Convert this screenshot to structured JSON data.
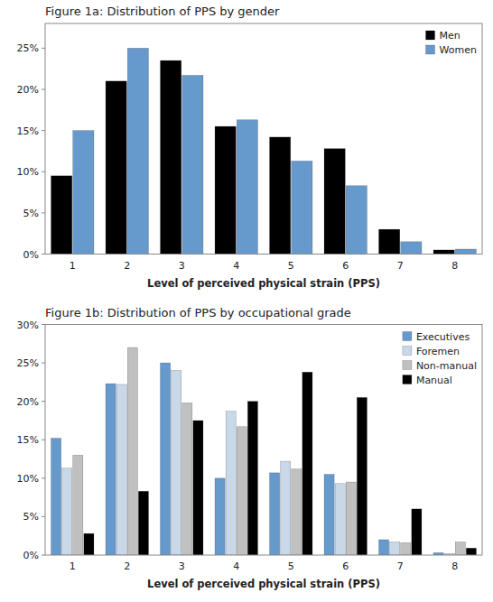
{
  "chart_data": [
    {
      "type": "bar",
      "title": "Figure 1a: Distribution of PPS by gender",
      "x_label": "Level of perceived physical strain (PPS)",
      "categories": [
        1,
        2,
        3,
        4,
        5,
        6,
        7,
        8
      ],
      "series": [
        {
          "name": "Men",
          "color": "#000000",
          "values": [
            0.095,
            0.21,
            0.235,
            0.155,
            0.142,
            0.128,
            0.03,
            0.005
          ]
        },
        {
          "name": "Women",
          "color": "#6699cc",
          "values": [
            0.15,
            0.25,
            0.217,
            0.163,
            0.113,
            0.083,
            0.015,
            0.006
          ]
        }
      ],
      "ylim": [
        0,
        0.28
      ],
      "yticks": [
        {
          "value": 0,
          "label": "0%"
        },
        {
          "value": 0.05,
          "label": "5%"
        },
        {
          "value": 0.1,
          "label": "10%"
        },
        {
          "value": 0.15,
          "label": "15%"
        },
        {
          "value": 0.2,
          "label": "20%"
        },
        {
          "value": 0.25,
          "label": "25%"
        }
      ],
      "grid": false,
      "legend": "upper-right"
    },
    {
      "type": "bar",
      "title": "Figure 1b: Distribution of PPS by occupational grade",
      "x_label": "Level of perceived physical strain (PPS)",
      "categories": [
        1,
        2,
        3,
        4,
        5,
        6,
        7,
        8
      ],
      "series": [
        {
          "name": "Executives",
          "color": "#6699cc",
          "values": [
            0.152,
            0.223,
            0.25,
            0.1,
            0.107,
            0.105,
            0.02,
            0.003
          ]
        },
        {
          "name": "Foremen",
          "color": "#c8d8e8",
          "values": [
            0.113,
            0.222,
            0.24,
            0.187,
            0.122,
            0.093,
            0.017,
            0.002
          ]
        },
        {
          "name": "Non-manual",
          "color": "#c0c0c0",
          "values": [
            0.13,
            0.27,
            0.198,
            0.167,
            0.112,
            0.095,
            0.016,
            0.017
          ]
        },
        {
          "name": "Manual",
          "color": "#000000",
          "values": [
            0.028,
            0.083,
            0.175,
            0.2,
            0.238,
            0.205,
            0.06,
            0.009
          ]
        }
      ],
      "ylim": [
        0,
        0.3
      ],
      "yticks": [
        {
          "value": 0,
          "label": "0%"
        },
        {
          "value": 0.05,
          "label": "5%"
        },
        {
          "value": 0.1,
          "label": "10%"
        },
        {
          "value": 0.15,
          "label": "15%"
        },
        {
          "value": 0.2,
          "label": "20%"
        },
        {
          "value": 0.25,
          "label": "25%"
        },
        {
          "value": 0.3,
          "label": "30%"
        }
      ],
      "grid": false,
      "legend": "upper-right"
    }
  ]
}
